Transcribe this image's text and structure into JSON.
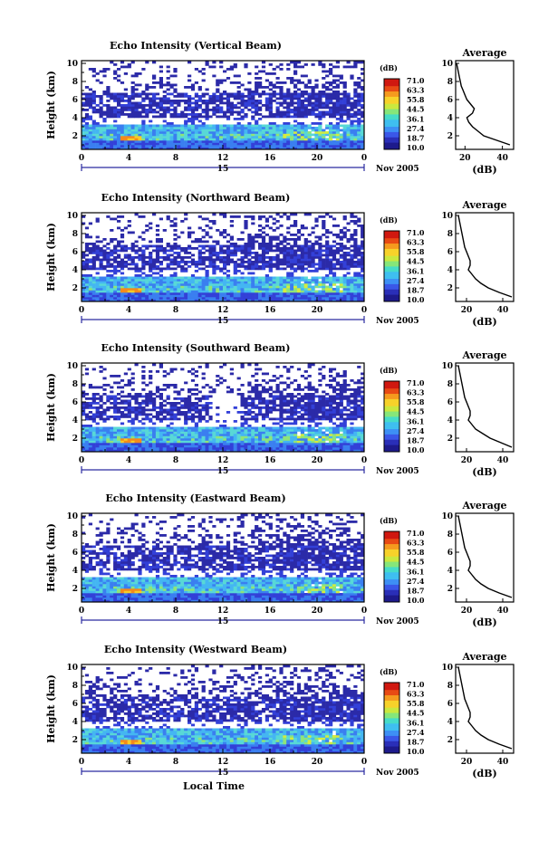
{
  "common": {
    "x_ticks": [
      "0",
      "4",
      "8",
      "12",
      "16",
      "20",
      "0"
    ],
    "y_ticks": [
      "2",
      "4",
      "6",
      "8",
      "10"
    ],
    "y_label": "Height (km)",
    "date_day": "15",
    "date_month": "Nov 2005",
    "x_label": "Local Time",
    "colorbar_unit": "(dB)",
    "colorbar_ticks": [
      "71.0",
      "63.3",
      "55.8",
      "44.5",
      "36.1",
      "27.4",
      "18.7",
      "10.0"
    ],
    "avg_title": "Average",
    "avg_xlabel": "(dB)"
  },
  "colors": {
    "scale": [
      "#2b2aa8",
      "#3340d8",
      "#3a7ff0",
      "#44b6f2",
      "#58d8d6",
      "#8ee47a",
      "#d4ec3e",
      "#f8cc26",
      "#f48a1c",
      "#e83a14"
    ]
  },
  "chart_data": [
    {
      "type": "heatmap",
      "title": "Echo Intensity (Vertical Beam)",
      "xlabel": "",
      "ylabel": "Height (km)",
      "xlim": [
        0,
        24
      ],
      "ylim": [
        0.5,
        10.3
      ],
      "colorbar": {
        "label": "(dB)",
        "range": [
          10.0,
          71.0
        ]
      },
      "average_profile": {
        "title": "Average",
        "xlabel": "(dB)",
        "xticks": [
          "20",
          "40"
        ],
        "xlim": [
          15,
          46
        ],
        "height": [
          1.0,
          1.5,
          2.0,
          2.5,
          3.0,
          3.5,
          4.0,
          4.5,
          5.0,
          5.5,
          6.0,
          6.5,
          7.0,
          7.5,
          8.0,
          8.5,
          9.0,
          9.5,
          10.0
        ],
        "db": [
          44,
          37,
          30,
          27,
          24,
          22,
          21,
          24,
          25,
          23,
          21,
          20,
          19,
          18,
          17.5,
          17,
          16.5,
          16,
          15.5
        ]
      }
    },
    {
      "type": "heatmap",
      "title": "Echo Intensity (Northward Beam)",
      "xlabel": "",
      "ylabel": "Height (km)",
      "xlim": [
        0,
        24
      ],
      "ylim": [
        0.5,
        10.3
      ],
      "colorbar": {
        "label": "(dB)",
        "range": [
          10.0,
          71.0
        ]
      },
      "average_profile": {
        "title": "Average",
        "xlabel": "(dB)",
        "xticks": [
          "20",
          "40"
        ],
        "xlim": [
          14,
          46
        ],
        "height": [
          1.0,
          1.5,
          2.0,
          2.5,
          3.0,
          3.5,
          4.0,
          4.5,
          5.0,
          5.5,
          6.0,
          6.5,
          7.0,
          7.5,
          8.0,
          8.5,
          9.0,
          9.5,
          10.0
        ],
        "db": [
          45,
          38,
          32,
          28,
          25,
          23,
          21,
          22,
          22,
          21,
          20,
          19,
          18.5,
          18,
          17.5,
          17,
          16.5,
          16,
          15.5
        ]
      }
    },
    {
      "type": "heatmap",
      "title": "Echo Intensity (Southward Beam)",
      "xlabel": "",
      "ylabel": "Height (km)",
      "xlim": [
        0,
        24
      ],
      "ylim": [
        0.5,
        10.3
      ],
      "colorbar": {
        "label": "(dB)",
        "range": [
          10.0,
          71.0
        ]
      },
      "average_profile": {
        "title": "Average",
        "xlabel": "(dB)",
        "xticks": [
          "20",
          "40"
        ],
        "xlim": [
          14,
          46
        ],
        "height": [
          1.0,
          1.5,
          2.0,
          2.5,
          3.0,
          3.5,
          4.0,
          4.5,
          5.0,
          5.5,
          6.0,
          6.5,
          7.0,
          7.5,
          8.0,
          8.5,
          9.0,
          9.5,
          10.0
        ],
        "db": [
          45,
          39,
          33,
          29,
          25,
          23,
          21,
          22,
          22,
          21,
          20,
          19,
          18.5,
          18,
          17.5,
          17,
          16.5,
          16,
          15.5
        ]
      }
    },
    {
      "type": "heatmap",
      "title": "Echo Intensity (Eastward Beam)",
      "xlabel": "",
      "ylabel": "Height (km)",
      "xlim": [
        0,
        24
      ],
      "ylim": [
        0.5,
        10.3
      ],
      "colorbar": {
        "label": "(dB)",
        "range": [
          10.0,
          71.0
        ]
      },
      "average_profile": {
        "title": "Average",
        "xlabel": "(dB)",
        "xticks": [
          "20",
          "40"
        ],
        "xlim": [
          14,
          46
        ],
        "height": [
          1.0,
          1.5,
          2.0,
          2.5,
          3.0,
          3.5,
          4.0,
          4.5,
          5.0,
          5.5,
          6.0,
          6.5,
          7.0,
          7.5,
          8.0,
          8.5,
          9.0,
          9.5,
          10.0
        ],
        "db": [
          45,
          38,
          32,
          28,
          25,
          23,
          21,
          22,
          22,
          21,
          20,
          19,
          18.5,
          18,
          17.5,
          17,
          16.5,
          16,
          15.5
        ]
      }
    },
    {
      "type": "heatmap",
      "title": "Echo Intensity (Westward Beam)",
      "xlabel": "Local Time",
      "ylabel": "Height (km)",
      "xlim": [
        0,
        24
      ],
      "ylim": [
        0.5,
        10.3
      ],
      "colorbar": {
        "label": "(dB)",
        "range": [
          10.0,
          71.0
        ]
      },
      "average_profile": {
        "title": "Average",
        "xlabel": "(dB)",
        "xticks": [
          "20",
          "40"
        ],
        "xlim": [
          14,
          46
        ],
        "height": [
          1.0,
          1.5,
          2.0,
          2.5,
          3.0,
          3.5,
          4.0,
          4.5,
          5.0,
          5.5,
          6.0,
          6.5,
          7.0,
          7.5,
          8.0,
          8.5,
          9.0,
          9.5,
          10.0
        ],
        "db": [
          45,
          38,
          32,
          28,
          25,
          23,
          21,
          22,
          22,
          21,
          20,
          19,
          18.5,
          18,
          17.5,
          17,
          16.5,
          16,
          15.5
        ]
      }
    }
  ]
}
